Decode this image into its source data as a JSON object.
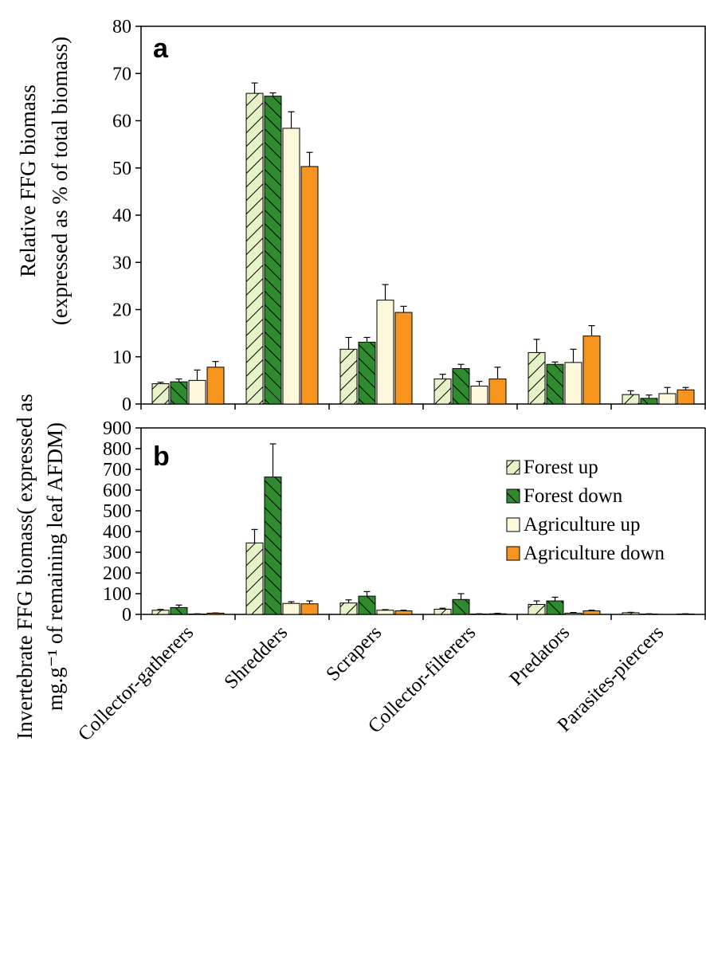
{
  "chart_data": [
    {
      "type": "bar",
      "panel": "a",
      "ylabel": [
        "Relative FFG biomass",
        "(expressed as % of total biomass)"
      ],
      "ylim": [
        0,
        80
      ],
      "yticks": [
        0,
        10,
        20,
        30,
        40,
        50,
        60,
        70,
        80
      ],
      "categories": [
        "Collector-gatherers",
        "Shredders",
        "Scrapers",
        "Collector-filterers",
        "Predators",
        "Parasites-piercers"
      ],
      "series": [
        {
          "name": "Forest up",
          "color": "#e6f2c8",
          "pattern": "hatch-light",
          "values": [
            4.3,
            65.8,
            11.6,
            5.3,
            10.9,
            2.0
          ],
          "errors": [
            0.3,
            2.2,
            2.5,
            1.0,
            2.8,
            0.8
          ]
        },
        {
          "name": "Forest down",
          "color": "#2e8b2e",
          "pattern": "hatch-dark",
          "values": [
            4.7,
            65.2,
            13.1,
            7.5,
            8.4,
            1.2
          ],
          "errors": [
            0.6,
            0.7,
            1.0,
            0.9,
            0.5,
            0.7
          ]
        },
        {
          "name": "Agriculture up",
          "color": "#fdf7dc",
          "pattern": "none",
          "values": [
            5.0,
            58.4,
            22.0,
            3.8,
            8.8,
            2.2
          ],
          "errors": [
            2.2,
            3.5,
            3.3,
            1.0,
            2.8,
            1.3
          ]
        },
        {
          "name": "Agriculture down",
          "color": "#f7941d",
          "pattern": "none",
          "values": [
            7.8,
            50.3,
            19.4,
            5.3,
            14.4,
            3.0
          ],
          "errors": [
            1.2,
            3.0,
            1.3,
            2.5,
            2.2,
            0.5
          ]
        }
      ]
    },
    {
      "type": "bar",
      "panel": "b",
      "ylabel": [
        "Invertebrate FFG biomass( expressed as",
        "mg.g⁻¹ of remaining leaf AFDM)"
      ],
      "ylim": [
        0,
        900
      ],
      "yticks": [
        0,
        100,
        200,
        300,
        400,
        500,
        600,
        700,
        800,
        900
      ],
      "categories": [
        "Collector-gatherers",
        "Shredders",
        "Scrapers",
        "Collector-filterers",
        "Predators",
        "Parasites-piercers"
      ],
      "legend_position": "top-right",
      "series": [
        {
          "name": "Forest up",
          "color": "#e6f2c8",
          "pattern": "hatch-light",
          "values": [
            20,
            345,
            55,
            25,
            48,
            8
          ],
          "errors": [
            4,
            65,
            15,
            5,
            17,
            2
          ]
        },
        {
          "name": "Forest down",
          "color": "#2e8b2e",
          "pattern": "hatch-dark",
          "values": [
            33,
            663,
            88,
            72,
            65,
            2
          ],
          "errors": [
            12,
            160,
            22,
            28,
            18,
            1
          ]
        },
        {
          "name": "Agriculture up",
          "color": "#fdf7dc",
          "pattern": "none",
          "values": [
            2,
            53,
            20,
            2,
            6,
            0
          ],
          "errors": [
            1,
            8,
            3,
            1,
            3,
            0
          ]
        },
        {
          "name": "Agriculture down",
          "color": "#f7941d",
          "pattern": "none",
          "values": [
            6,
            51,
            17,
            3,
            17,
            2
          ],
          "errors": [
            1,
            14,
            3,
            2,
            3,
            1
          ]
        }
      ]
    }
  ]
}
